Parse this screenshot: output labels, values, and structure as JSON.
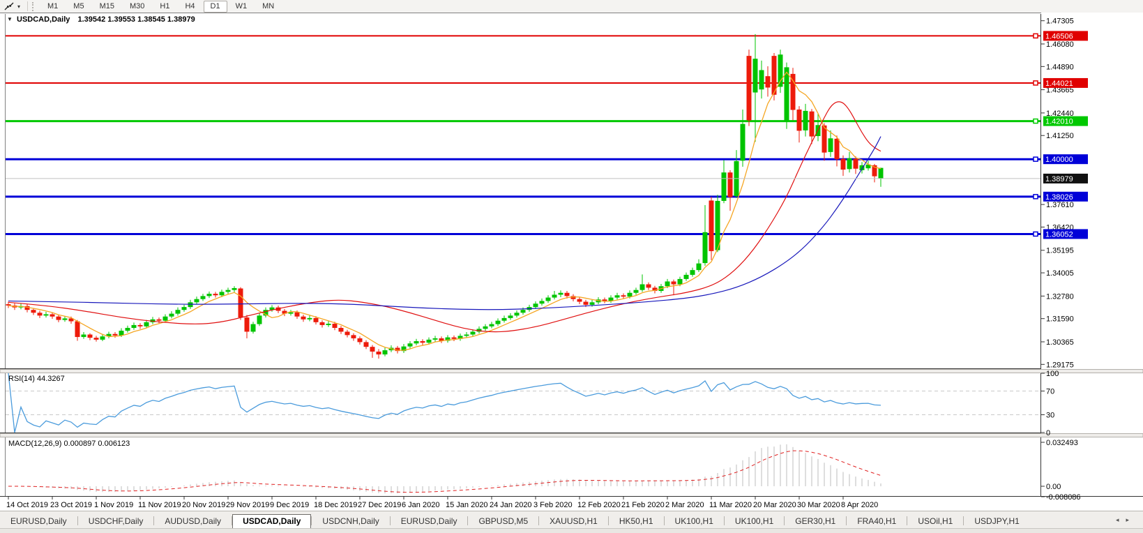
{
  "toolbar": {
    "timeframes": [
      "M1",
      "M5",
      "M15",
      "M30",
      "H1",
      "H4",
      "D1",
      "W1",
      "MN"
    ],
    "active_timeframe": "D1"
  },
  "icons": {
    "dropdown_caret": "▾",
    "title_collapse": "▼",
    "tab_scroll_left": "◂",
    "tab_scroll_right": "▸"
  },
  "chart": {
    "title_symbol": "USDCAD,Daily",
    "title_ohlc": "1.39542 1.39553 1.38545 1.38979",
    "price_axis_ticks": [
      1.47305,
      1.4608,
      1.4489,
      1.43665,
      1.4244,
      1.4125,
      1.3761,
      1.3642,
      1.35195,
      1.34005,
      1.3278,
      1.3159,
      1.30365,
      1.29175
    ],
    "hlines": [
      {
        "price": 1.46506,
        "color": "#e00000",
        "width": 2
      },
      {
        "price": 1.44021,
        "color": "#e00000",
        "width": 2
      },
      {
        "price": 1.4201,
        "color": "#00c800",
        "width": 3
      },
      {
        "price": 1.4,
        "color": "#0000d8",
        "width": 3
      },
      {
        "price": 1.38026,
        "color": "#0000d8",
        "width": 3
      },
      {
        "price": 1.36052,
        "color": "#0000d8",
        "width": 3
      }
    ],
    "current_price": 1.38979,
    "date_labels": [
      "14 Oct 2019",
      "23 Oct 2019",
      "1 Nov 2019",
      "11 Nov 2019",
      "20 Nov 2019",
      "29 Nov 2019",
      "9 Dec 2019",
      "18 Dec 2019",
      "27 Dec 2019",
      "6 Jan 2020",
      "15 Jan 2020",
      "24 Jan 2020",
      "3 Feb 2020",
      "12 Feb 2020",
      "21 Feb 2020",
      "2 Mar 2020",
      "11 Mar 2020",
      "20 Mar 2020",
      "30 Mar 2020",
      "8 Apr 2020"
    ],
    "colors": {
      "up": "#00c400",
      "down": "#ed1b0b",
      "ma_fast": "#f5a623",
      "ma_mid": "#e01010",
      "ma_slow": "#1818bb",
      "rsi": "#4a9bdc",
      "rsi_level_dash": "#c8c8c8",
      "macd_hist": "#bdbdbd",
      "macd_signal": "#e02020",
      "price_line": "#c0c0c0",
      "price_badge_bg": "#111111",
      "axis_text": "#000000",
      "border": "#808080"
    },
    "candles": [
      [
        1.3235,
        1.3248,
        1.3215,
        1.3228
      ],
      [
        1.3228,
        1.324,
        1.3205,
        1.3218
      ],
      [
        1.3218,
        1.3238,
        1.3208,
        1.3225
      ],
      [
        1.3225,
        1.3235,
        1.3192,
        1.3205
      ],
      [
        1.3205,
        1.3215,
        1.3178,
        1.319
      ],
      [
        1.319,
        1.32,
        1.3162,
        1.3175
      ],
      [
        1.3175,
        1.3195,
        1.3165,
        1.3182
      ],
      [
        1.3182,
        1.3192,
        1.3158,
        1.317
      ],
      [
        1.317,
        1.318,
        1.314,
        1.3152
      ],
      [
        1.3152,
        1.3172,
        1.3142,
        1.316
      ],
      [
        1.316,
        1.317,
        1.3132,
        1.3145
      ],
      [
        1.3145,
        1.3152,
        1.3042,
        1.3062
      ],
      [
        1.3062,
        1.3088,
        1.3052,
        1.3075
      ],
      [
        1.3075,
        1.3082,
        1.3045,
        1.3058
      ],
      [
        1.3058,
        1.3068,
        1.3038,
        1.3048
      ],
      [
        1.3048,
        1.3078,
        1.304,
        1.3065
      ],
      [
        1.3065,
        1.309,
        1.3055,
        1.3078
      ],
      [
        1.3078,
        1.3088,
        1.3058,
        1.307
      ],
      [
        1.307,
        1.3108,
        1.3062,
        1.3095
      ],
      [
        1.3095,
        1.3122,
        1.3085,
        1.311
      ],
      [
        1.311,
        1.3138,
        1.31,
        1.3125
      ],
      [
        1.3125,
        1.3135,
        1.3105,
        1.3118
      ],
      [
        1.3118,
        1.3152,
        1.3108,
        1.314
      ],
      [
        1.314,
        1.3168,
        1.313,
        1.3155
      ],
      [
        1.3155,
        1.3165,
        1.3135,
        1.3148
      ],
      [
        1.3148,
        1.3182,
        1.3138,
        1.317
      ],
      [
        1.317,
        1.3198,
        1.316,
        1.3185
      ],
      [
        1.3185,
        1.3218,
        1.3175,
        1.3205
      ],
      [
        1.3205,
        1.3232,
        1.3195,
        1.322
      ],
      [
        1.322,
        1.3258,
        1.321,
        1.3245
      ],
      [
        1.3245,
        1.3275,
        1.3235,
        1.3262
      ],
      [
        1.3262,
        1.329,
        1.3252,
        1.3278
      ],
      [
        1.3278,
        1.3302,
        1.3268,
        1.329
      ],
      [
        1.329,
        1.33,
        1.327,
        1.3282
      ],
      [
        1.3282,
        1.3312,
        1.3272,
        1.33
      ],
      [
        1.33,
        1.3322,
        1.329,
        1.331
      ],
      [
        1.331,
        1.333,
        1.3298,
        1.332
      ],
      [
        1.3318,
        1.3325,
        1.3152,
        1.3165
      ],
      [
        1.3165,
        1.3178,
        1.3055,
        1.309
      ],
      [
        1.309,
        1.3142,
        1.308,
        1.313
      ],
      [
        1.313,
        1.3188,
        1.312,
        1.3175
      ],
      [
        1.3175,
        1.3218,
        1.3165,
        1.3205
      ],
      [
        1.3205,
        1.323,
        1.3195,
        1.3218
      ],
      [
        1.3218,
        1.3228,
        1.3188,
        1.32
      ],
      [
        1.32,
        1.321,
        1.3172,
        1.3185
      ],
      [
        1.3185,
        1.3205,
        1.3175,
        1.3192
      ],
      [
        1.3192,
        1.3202,
        1.3158,
        1.317
      ],
      [
        1.317,
        1.318,
        1.3142,
        1.3155
      ],
      [
        1.3155,
        1.3175,
        1.3145,
        1.3162
      ],
      [
        1.3162,
        1.3172,
        1.3128,
        1.314
      ],
      [
        1.314,
        1.315,
        1.3112,
        1.3125
      ],
      [
        1.3125,
        1.3145,
        1.3115,
        1.3132
      ],
      [
        1.3132,
        1.3142,
        1.3098,
        1.311
      ],
      [
        1.311,
        1.312,
        1.3078,
        1.309
      ],
      [
        1.309,
        1.31,
        1.306,
        1.3072
      ],
      [
        1.3072,
        1.3082,
        1.3042,
        1.3055
      ],
      [
        1.3055,
        1.3065,
        1.3022,
        1.3035
      ],
      [
        1.3035,
        1.3045,
        1.2998,
        1.301
      ],
      [
        1.301,
        1.302,
        1.2952,
        1.2985
      ],
      [
        1.2985,
        1.2998,
        1.2948,
        1.297
      ],
      [
        1.297,
        1.3005,
        1.296,
        1.2992
      ],
      [
        1.2992,
        1.3018,
        1.2982,
        1.3005
      ],
      [
        1.3005,
        1.3015,
        1.2975,
        1.2988
      ],
      [
        1.2988,
        1.3025,
        1.2978,
        1.3012
      ],
      [
        1.3012,
        1.304,
        1.3002,
        1.3028
      ],
      [
        1.3028,
        1.3052,
        1.3018,
        1.304
      ],
      [
        1.304,
        1.305,
        1.302,
        1.3032
      ],
      [
        1.3032,
        1.306,
        1.3022,
        1.3048
      ],
      [
        1.3048,
        1.3068,
        1.3038,
        1.3055
      ],
      [
        1.3055,
        1.3065,
        1.303,
        1.3042
      ],
      [
        1.3042,
        1.3072,
        1.3032,
        1.306
      ],
      [
        1.306,
        1.307,
        1.304,
        1.3052
      ],
      [
        1.3052,
        1.308,
        1.3042,
        1.3068
      ],
      [
        1.3068,
        1.3088,
        1.3058,
        1.3075
      ],
      [
        1.3075,
        1.3102,
        1.3065,
        1.309
      ],
      [
        1.309,
        1.3118,
        1.308,
        1.3105
      ],
      [
        1.3105,
        1.313,
        1.3095,
        1.3118
      ],
      [
        1.3118,
        1.3142,
        1.3108,
        1.313
      ],
      [
        1.313,
        1.316,
        1.312,
        1.3148
      ],
      [
        1.3148,
        1.3175,
        1.3138,
        1.3162
      ],
      [
        1.3162,
        1.3188,
        1.3152,
        1.3175
      ],
      [
        1.3175,
        1.3202,
        1.3165,
        1.319
      ],
      [
        1.319,
        1.3218,
        1.318,
        1.3205
      ],
      [
        1.3205,
        1.3232,
        1.3195,
        1.322
      ],
      [
        1.322,
        1.325,
        1.321,
        1.3238
      ],
      [
        1.3238,
        1.3265,
        1.3228,
        1.3252
      ],
      [
        1.3252,
        1.3282,
        1.3242,
        1.327
      ],
      [
        1.327,
        1.3305,
        1.326,
        1.3285
      ],
      [
        1.3285,
        1.3308,
        1.3272,
        1.3295
      ],
      [
        1.3295,
        1.3305,
        1.3265,
        1.3278
      ],
      [
        1.3278,
        1.3288,
        1.325,
        1.3262
      ],
      [
        1.3262,
        1.3272,
        1.3235,
        1.3248
      ],
      [
        1.3248,
        1.3258,
        1.322,
        1.3232
      ],
      [
        1.3232,
        1.3258,
        1.3222,
        1.3245
      ],
      [
        1.3245,
        1.3272,
        1.3235,
        1.326
      ],
      [
        1.326,
        1.327,
        1.324,
        1.3252
      ],
      [
        1.3252,
        1.3282,
        1.3242,
        1.327
      ],
      [
        1.327,
        1.3295,
        1.326,
        1.3282
      ],
      [
        1.3282,
        1.3292,
        1.3262,
        1.3275
      ],
      [
        1.3275,
        1.3308,
        1.3265,
        1.3295
      ],
      [
        1.3295,
        1.3322,
        1.3285,
        1.331
      ],
      [
        1.331,
        1.3392,
        1.33,
        1.334
      ],
      [
        1.334,
        1.335,
        1.331,
        1.3322
      ],
      [
        1.3322,
        1.3332,
        1.3292,
        1.3305
      ],
      [
        1.3305,
        1.3342,
        1.3295,
        1.333
      ],
      [
        1.333,
        1.3368,
        1.332,
        1.3355
      ],
      [
        1.3355,
        1.3365,
        1.3282,
        1.334
      ],
      [
        1.334,
        1.338,
        1.333,
        1.3368
      ],
      [
        1.3368,
        1.3402,
        1.3358,
        1.339
      ],
      [
        1.339,
        1.3428,
        1.338,
        1.3415
      ],
      [
        1.3415,
        1.3472,
        1.3405,
        1.345
      ],
      [
        1.3452,
        1.3758,
        1.3438,
        1.3615
      ],
      [
        1.3782,
        1.3802,
        1.3468,
        1.3515
      ],
      [
        1.352,
        1.3812,
        1.351,
        1.378
      ],
      [
        1.378,
        1.3995,
        1.3768,
        1.393
      ],
      [
        1.393,
        1.3942,
        1.3728,
        1.38
      ],
      [
        1.3805,
        1.4048,
        1.3795,
        1.399
      ],
      [
        1.3992,
        1.4262,
        1.396,
        1.4186
      ],
      [
        1.4545,
        1.4578,
        1.4175,
        1.4205
      ],
      [
        1.4352,
        1.466,
        1.4092,
        1.453
      ],
      [
        1.4368,
        1.452,
        1.432,
        1.447
      ],
      [
        1.4438,
        1.449,
        1.433,
        1.4378
      ],
      [
        1.4545,
        1.456,
        1.431,
        1.434
      ],
      [
        1.4382,
        1.4578,
        1.435,
        1.4552
      ],
      [
        1.4205,
        1.451,
        1.416,
        1.4485
      ],
      [
        1.445,
        1.4482,
        1.4205,
        1.426
      ],
      [
        1.4262,
        1.428,
        1.4088,
        1.415
      ],
      [
        1.4152,
        1.4292,
        1.412,
        1.4255
      ],
      [
        1.4252,
        1.4265,
        1.408,
        1.412
      ],
      [
        1.4122,
        1.4242,
        1.4095,
        1.418
      ],
      [
        1.4178,
        1.419,
        1.3992,
        1.4035
      ],
      [
        1.4038,
        1.4152,
        1.4012,
        1.411
      ],
      [
        1.4108,
        1.4125,
        1.3962,
        1.4
      ],
      [
        1.4002,
        1.402,
        1.3912,
        1.3945
      ],
      [
        1.3948,
        1.4038,
        1.393,
        1.4005
      ],
      [
        1.4002,
        1.4015,
        1.3922,
        1.395
      ],
      [
        1.3942,
        1.3985,
        1.3925,
        1.3968
      ],
      [
        1.3952,
        1.3992,
        1.394,
        1.3972
      ],
      [
        1.3968,
        1.3975,
        1.3878,
        1.391
      ],
      [
        1.39542,
        1.39553,
        1.38545,
        1.38979,
        1
      ]
    ],
    "ma_fast_period": 6,
    "ma_mid_points": [
      [
        0,
        1.3245
      ],
      [
        6,
        1.3228
      ],
      [
        12,
        1.32
      ],
      [
        18,
        1.3165
      ],
      [
        24,
        1.314
      ],
      [
        30,
        1.3128
      ],
      [
        34,
        1.314
      ],
      [
        38,
        1.3172
      ],
      [
        42,
        1.3205
      ],
      [
        46,
        1.3232
      ],
      [
        50,
        1.3252
      ],
      [
        53,
        1.3258
      ],
      [
        56,
        1.3248
      ],
      [
        60,
        1.3225
      ],
      [
        64,
        1.319
      ],
      [
        68,
        1.315
      ],
      [
        71,
        1.312
      ],
      [
        74,
        1.3098
      ],
      [
        77,
        1.3088
      ],
      [
        80,
        1.3092
      ],
      [
        84,
        1.3115
      ],
      [
        88,
        1.315
      ],
      [
        92,
        1.3188
      ],
      [
        96,
        1.3222
      ],
      [
        100,
        1.3252
      ],
      [
        104,
        1.3275
      ],
      [
        108,
        1.3295
      ],
      [
        112,
        1.333
      ],
      [
        115,
        1.339
      ],
      [
        118,
        1.349
      ],
      [
        121,
        1.363
      ],
      [
        124,
        1.38
      ],
      [
        126,
        1.395
      ],
      [
        128,
        1.409
      ],
      [
        130,
        1.422
      ],
      [
        131,
        1.428
      ],
      [
        132,
        1.4305
      ],
      [
        133,
        1.43
      ],
      [
        134,
        1.426
      ],
      [
        135,
        1.42
      ],
      [
        136,
        1.414
      ],
      [
        137,
        1.409
      ],
      [
        138,
        1.406
      ],
      [
        139,
        1.4042
      ]
    ],
    "ma_slow_points": [
      [
        0,
        1.3252
      ],
      [
        8,
        1.3248
      ],
      [
        16,
        1.3242
      ],
      [
        24,
        1.3236
      ],
      [
        32,
        1.3234
      ],
      [
        40,
        1.3238
      ],
      [
        48,
        1.324
      ],
      [
        54,
        1.3236
      ],
      [
        60,
        1.3226
      ],
      [
        66,
        1.3215
      ],
      [
        72,
        1.3208
      ],
      [
        78,
        1.3206
      ],
      [
        84,
        1.3212
      ],
      [
        90,
        1.3222
      ],
      [
        96,
        1.3234
      ],
      [
        102,
        1.3248
      ],
      [
        108,
        1.3266
      ],
      [
        112,
        1.3288
      ],
      [
        116,
        1.3322
      ],
      [
        120,
        1.3378
      ],
      [
        124,
        1.3458
      ],
      [
        127,
        1.354
      ],
      [
        130,
        1.365
      ],
      [
        132,
        1.374
      ],
      [
        134,
        1.384
      ],
      [
        136,
        1.395
      ],
      [
        138,
        1.4055
      ],
      [
        139,
        1.412
      ]
    ]
  },
  "rsi": {
    "label": "RSI(14) 44.3267",
    "period": 14,
    "axis_labels": [
      100,
      70,
      30,
      0
    ],
    "upper_level": 70,
    "lower_level": 30
  },
  "macd": {
    "label": "MACD(12,26,9) 0.000897 0.006123",
    "fast": 12,
    "slow": 26,
    "signal": 9,
    "axis_labels": [
      "0.032493",
      "0.00",
      "-0.008086"
    ]
  },
  "tabs": [
    {
      "label": "EURUSD,Daily",
      "active": false
    },
    {
      "label": "USDCHF,Daily",
      "active": false
    },
    {
      "label": "AUDUSD,Daily",
      "active": false
    },
    {
      "label": "USDCAD,Daily",
      "active": true
    },
    {
      "label": "USDCNH,Daily",
      "active": false
    },
    {
      "label": "EURUSD,Daily",
      "active": false
    },
    {
      "label": "GBPUSD,M5",
      "active": false
    },
    {
      "label": "XAUUSD,H1",
      "active": false
    },
    {
      "label": "HK50,H1",
      "active": false
    },
    {
      "label": "UK100,H1",
      "active": false
    },
    {
      "label": "UK100,H1",
      "active": false
    },
    {
      "label": "GER30,H1",
      "active": false
    },
    {
      "label": "FRA40,H1",
      "active": false
    },
    {
      "label": "USOil,H1",
      "active": false
    },
    {
      "label": "USDJPY,H1",
      "active": false
    }
  ]
}
